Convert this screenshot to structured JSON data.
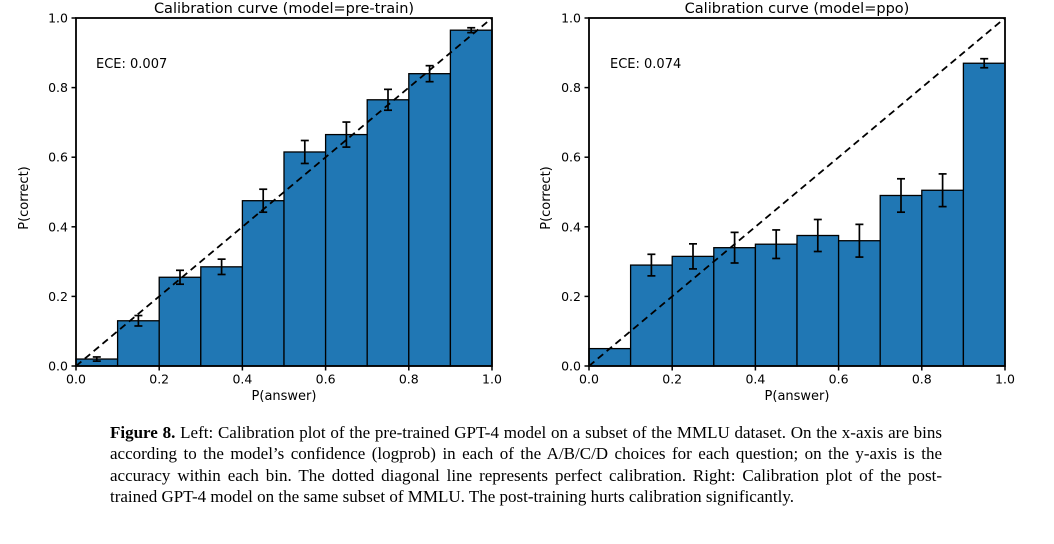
{
  "colors": {
    "bar_fill": "#2077b4",
    "bar_edge": "#000000",
    "diagonal": "#000000",
    "text": "#000000"
  },
  "figure": {
    "caption_label": "Figure 8.",
    "caption_text": " Left: Calibration plot of the pre-trained GPT-4 model on a subset of the MMLU dataset. On the x-axis are bins according to the model’s confidence (logprob) in each of the A/B/C/D choices for each question; on the y-axis is the accuracy within each bin. The dotted diagonal line represents perfect calibration. Right: Calibration plot of the post-trained GPT-4 model on the same subset of MMLU. The post-training hurts calibration significantly."
  },
  "chart_data": [
    {
      "type": "bar",
      "title": "Calibration curve (model=pre-train)",
      "annotation": "ECE: 0.007",
      "xlabel": "P(answer)",
      "ylabel": "P(correct)",
      "xlim": [
        0.0,
        1.0
      ],
      "ylim": [
        0.0,
        1.0
      ],
      "xticks": [
        0.0,
        0.2,
        0.4,
        0.6,
        0.8,
        1.0
      ],
      "yticks": [
        0.0,
        0.2,
        0.4,
        0.6,
        0.8,
        1.0
      ],
      "grid": false,
      "legend": "none",
      "diagonal": true,
      "bin_width": 0.1,
      "bin_centers": [
        0.05,
        0.15,
        0.25,
        0.35,
        0.45,
        0.55,
        0.65,
        0.75,
        0.85,
        0.95
      ],
      "values": [
        0.02,
        0.13,
        0.255,
        0.285,
        0.475,
        0.615,
        0.665,
        0.765,
        0.84,
        0.965
      ],
      "errors": [
        0.006,
        0.015,
        0.02,
        0.022,
        0.033,
        0.033,
        0.036,
        0.03,
        0.023,
        0.007
      ]
    },
    {
      "type": "bar",
      "title": "Calibration curve (model=ppo)",
      "annotation": "ECE: 0.074",
      "xlabel": "P(answer)",
      "ylabel": "P(correct)",
      "xlim": [
        0.0,
        1.0
      ],
      "ylim": [
        0.0,
        1.0
      ],
      "xticks": [
        0.0,
        0.2,
        0.4,
        0.6,
        0.8,
        1.0
      ],
      "yticks": [
        0.0,
        0.2,
        0.4,
        0.6,
        0.8,
        1.0
      ],
      "grid": false,
      "legend": "none",
      "diagonal": true,
      "bin_width": 0.1,
      "bin_centers": [
        0.05,
        0.15,
        0.25,
        0.35,
        0.45,
        0.55,
        0.65,
        0.75,
        0.85,
        0.95
      ],
      "values": [
        0.05,
        0.29,
        0.315,
        0.34,
        0.35,
        0.375,
        0.36,
        0.49,
        0.505,
        0.87
      ],
      "errors": [
        0,
        0.031,
        0.036,
        0.044,
        0.041,
        0.046,
        0.047,
        0.048,
        0.047,
        0.013
      ]
    }
  ]
}
